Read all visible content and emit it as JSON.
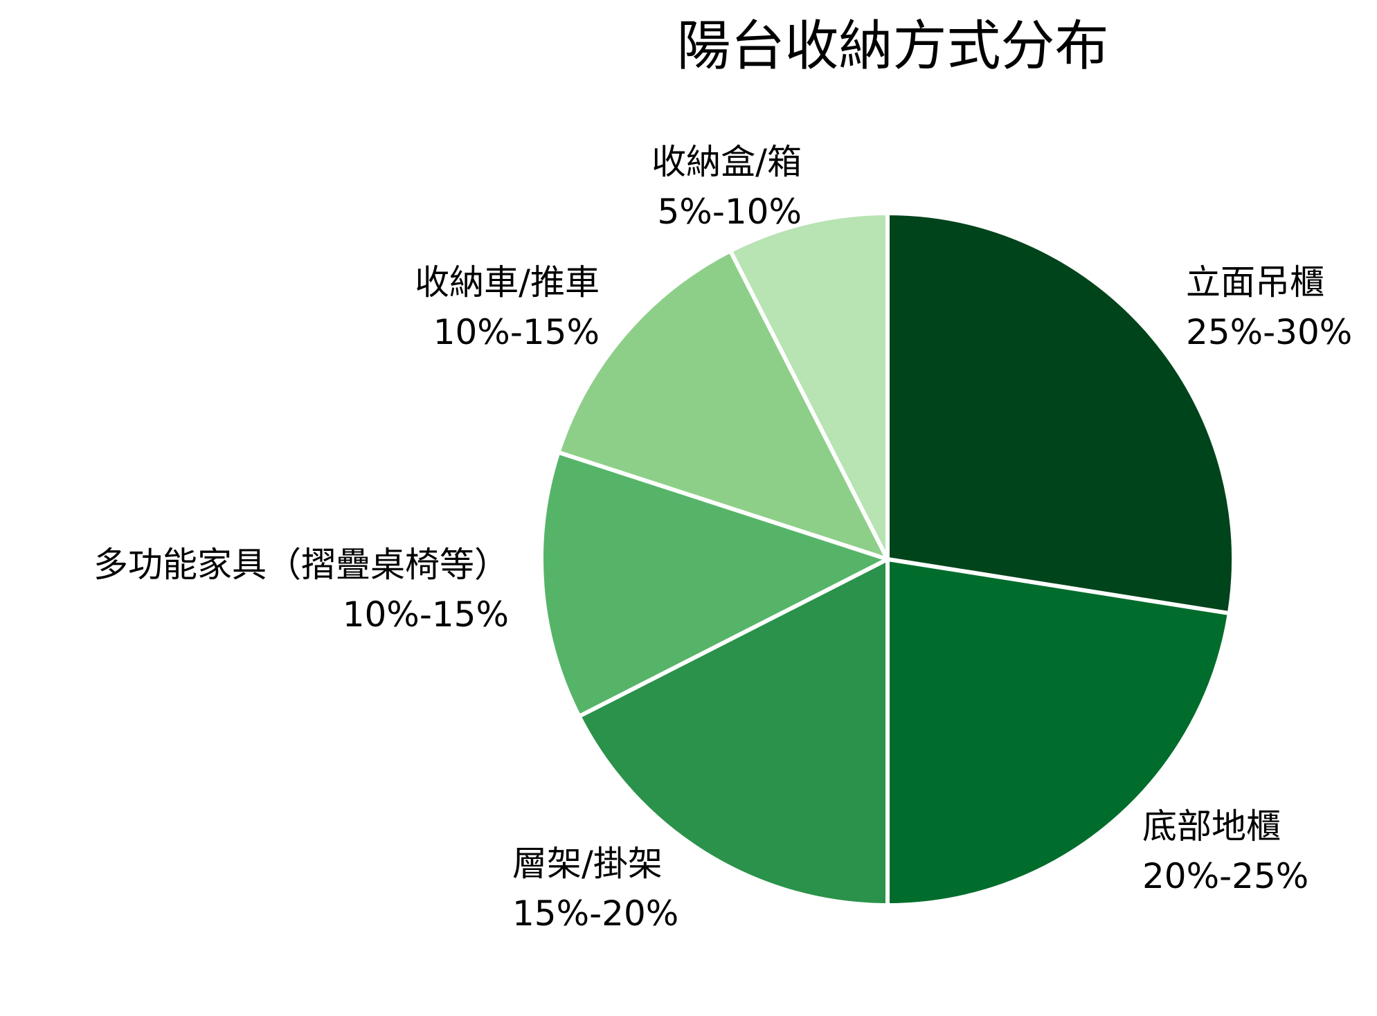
{
  "chart_data": {
    "type": "pie",
    "title": "陽台收納方式分布",
    "start_angle": "12 o'clock, clockwise",
    "categories": [
      "立面吊櫃",
      "底部地櫃",
      "層架/掛架",
      "多功能家具（摺疊桌椅等）",
      "收納車/推車",
      "收納盒/箱"
    ],
    "values": [
      27.5,
      22.5,
      17.5,
      12.5,
      12.5,
      7.5
    ],
    "range_labels": [
      "25%-30%",
      "20%-25%",
      "15%-20%",
      "10%-15%",
      "10%-15%",
      "5%-10%"
    ],
    "colors": [
      "#00441b",
      "#006d2c",
      "#2a924a",
      "#56b468",
      "#8dcf89",
      "#b8e3b3"
    ],
    "legend": "none (labels placed outside slices)"
  },
  "title": "陽台收納方式分布",
  "labels": [
    {
      "name": "立面吊櫃",
      "range": "25%-30%"
    },
    {
      "name": "底部地櫃",
      "range": "20%-25%"
    },
    {
      "name": "層架/掛架",
      "range": "15%-20%"
    },
    {
      "name": "多功能家具（摺疊桌椅等）",
      "range": "10%-15%"
    },
    {
      "name": "收納車/推車",
      "range": "10%-15%"
    },
    {
      "name": "收納盒/箱",
      "range": "5%-10%"
    }
  ]
}
